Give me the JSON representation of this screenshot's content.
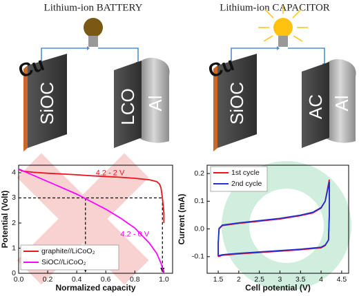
{
  "diagrams": {
    "battery": {
      "title": "Lithium-ion BATTERY",
      "current_collector": "Cu",
      "anode": "SiOC",
      "cathode": "LCO",
      "cathode_collector": "Al"
    },
    "capacitor": {
      "title": "Lithium-ion CAPACITOR",
      "current_collector": "Cu",
      "anode": "SiOC",
      "cathode": "AC",
      "cathode_collector": "Al"
    }
  },
  "chart_data": [
    {
      "type": "line",
      "xlabel": "Normalized capacity",
      "ylabel": "Potential (Volt)",
      "xlim": [
        0,
        1.06
      ],
      "ylim": [
        0,
        4.3
      ],
      "xticks": [
        {
          "value": 0,
          "label": "0.0"
        },
        {
          "value": 0.2,
          "label": "0.2"
        },
        {
          "value": 0.4,
          "label": "0.4"
        },
        {
          "value": 0.6,
          "label": "0.6"
        },
        {
          "value": 0.8,
          "label": "0.8"
        },
        {
          "value": 1,
          "label": "1.0"
        }
      ],
      "yticks": [
        0,
        1,
        2,
        3,
        4
      ],
      "legend": "lower left",
      "annotations": [
        "4.2 - 2 V",
        "4.2 - 0 V"
      ],
      "hline": 3,
      "vlines": [
        0.46,
        0.99
      ],
      "series": [
        {
          "name": "graphite//LiCoO₂",
          "color": "#e8141b",
          "x": [
            0,
            0.02,
            0.1,
            0.2,
            0.3,
            0.4,
            0.5,
            0.6,
            0.7,
            0.8,
            0.9,
            0.95,
            0.97,
            0.98,
            0.99,
            1.0,
            1.0
          ],
          "values": [
            4.15,
            4.07,
            4.02,
            3.98,
            3.95,
            3.92,
            3.88,
            3.85,
            3.82,
            3.78,
            3.72,
            3.65,
            3.55,
            3.4,
            3.0,
            2.4,
            2.0
          ]
        },
        {
          "name": "SiOC//LiCoO₂",
          "color": "#ff00ff",
          "x": [
            0,
            0.1,
            0.2,
            0.3,
            0.4,
            0.5,
            0.6,
            0.7,
            0.8,
            0.9,
            0.95,
            0.98,
            1.0
          ],
          "values": [
            4.15,
            3.9,
            3.65,
            3.4,
            3.15,
            2.85,
            2.55,
            2.2,
            1.8,
            1.2,
            0.8,
            0.4,
            0
          ]
        }
      ]
    },
    {
      "type": "line",
      "xlabel": "Cell potential (V)",
      "ylabel": "Current (mA)",
      "xlim": [
        1.23,
        4.67
      ],
      "ylim": [
        -0.16,
        0.23
      ],
      "xticks": [
        1.5,
        2,
        2.5,
        3,
        3.5,
        4,
        4.5
      ],
      "yticks": [
        -0.1,
        {
          "value": 0,
          "label": "0.0"
        },
        0.1,
        0.2
      ],
      "legend": "upper left",
      "series": [
        {
          "name": "1st cycle",
          "color": "#e8141b",
          "x": [
            1.5,
            1.5,
            1.52,
            1.6,
            2.0,
            2.5,
            3.0,
            3.5,
            3.8,
            4.0,
            4.1,
            4.2,
            4.2,
            4.18,
            4.1,
            4.0,
            3.5,
            3.0,
            2.5,
            2.0,
            1.6,
            1.5
          ],
          "values": [
            -0.1,
            -0.05,
            0.0,
            0.012,
            0.02,
            0.028,
            0.036,
            0.048,
            0.058,
            0.075,
            0.1,
            0.178,
            0.05,
            -0.04,
            -0.06,
            -0.068,
            -0.075,
            -0.08,
            -0.085,
            -0.09,
            -0.095,
            -0.1
          ]
        },
        {
          "name": "2nd cycle",
          "color": "#1f2fd0",
          "x": [
            1.5,
            1.5,
            1.52,
            1.6,
            2.0,
            2.5,
            3.0,
            3.5,
            3.8,
            4.0,
            4.1,
            4.2,
            4.2,
            4.18,
            4.1,
            4.0,
            3.5,
            3.0,
            2.5,
            2.0,
            1.6,
            1.5
          ],
          "values": [
            -0.097,
            -0.05,
            0.002,
            0.014,
            0.022,
            0.03,
            0.038,
            0.05,
            0.06,
            0.077,
            0.1,
            0.17,
            0.05,
            -0.04,
            -0.058,
            -0.066,
            -0.073,
            -0.078,
            -0.083,
            -0.088,
            -0.093,
            -0.097
          ]
        }
      ]
    }
  ]
}
